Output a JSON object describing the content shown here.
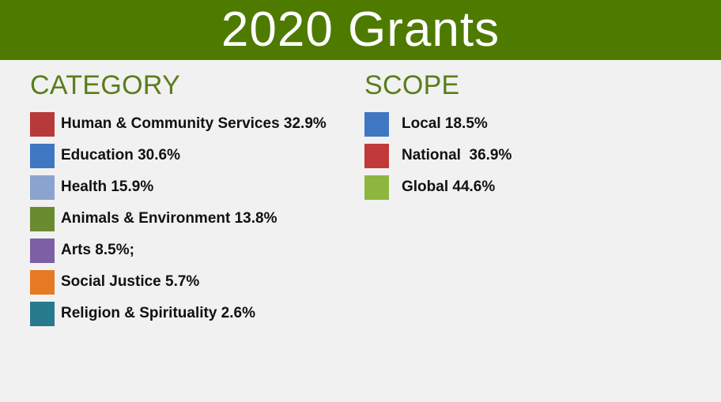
{
  "title": "2020 Grants",
  "chart_data": [
    {
      "type": "pie",
      "title": "CATEGORY",
      "categories": [
        "Human & Community Services",
        "Education",
        "Health",
        "Animals & Environment",
        "Arts",
        "Social Justice",
        "Religion & Spirituality"
      ],
      "values": [
        32.9,
        30.6,
        15.9,
        13.8,
        8.5,
        5.7,
        2.6
      ],
      "labels": [
        "Human & Community Services 32.9%",
        "Education 30.6%",
        "Health 15.9%",
        "Animals & Environment 13.8%",
        "Arts 8.5%;",
        "Social Justice 5.7%",
        "Religion & Spirituality 2.6%"
      ],
      "colors": [
        "#b7393a",
        "#3f77c3",
        "#8aa4cf",
        "#6b8b2f",
        "#7c5fa5",
        "#e67a23",
        "#267a8c"
      ]
    },
    {
      "type": "pie",
      "title": "SCOPE",
      "categories": [
        "Local",
        "National",
        "Global"
      ],
      "values": [
        18.5,
        36.9,
        44.6
      ],
      "labels": [
        "Local 18.5%",
        "National  36.9%",
        "Global 44.6%"
      ],
      "colors": [
        "#3f77c3",
        "#c13a3a",
        "#8db63f"
      ]
    }
  ],
  "colors": {
    "banner": "#4f7a00",
    "heading": "#5b7d1b",
    "background": "#f1f1f1"
  }
}
